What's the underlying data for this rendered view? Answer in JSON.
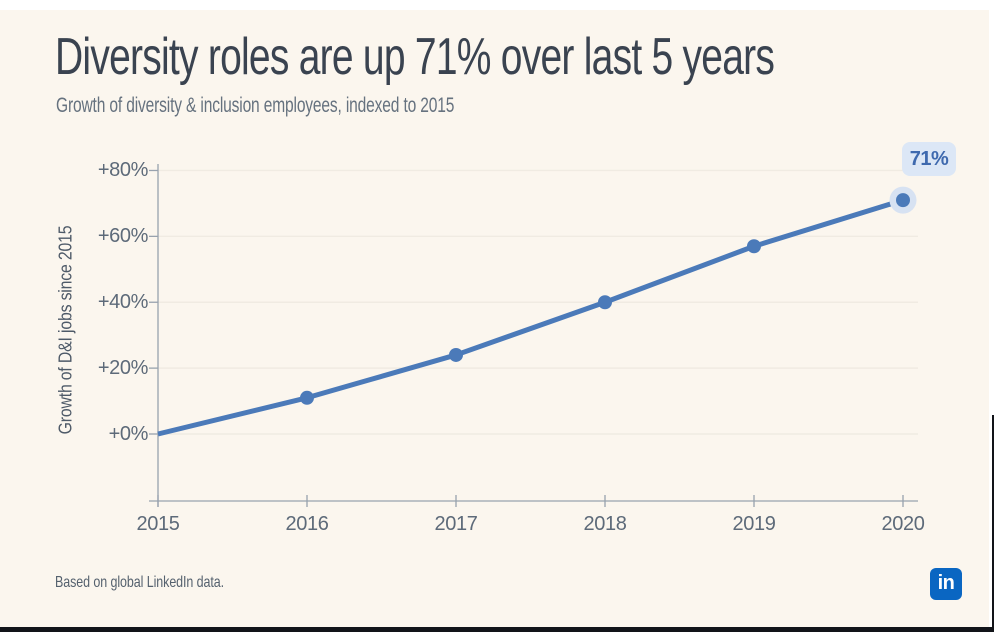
{
  "page": {
    "title": "Diversity roles are up 71% over last 5 years",
    "subtitle": "Growth of diversity & inclusion employees, indexed to 2015",
    "footer": "Based on global LinkedIn data.",
    "logo_text": "in"
  },
  "annotation": {
    "label": "71%"
  },
  "colors": {
    "panel_background": "#FBF6EE",
    "line": "#4B7AB9",
    "marker": "#4B7AB9",
    "marker_halo": "#D7E2F2",
    "badge_background": "#DCE7F6",
    "badge_text": "#3E69AE",
    "grid": "#F0EBE2",
    "axis": "#98A2AE",
    "title_text": "#3A4350",
    "subtitle_text": "#66727F",
    "tick_text": "#5D6A79",
    "linkedin_blue": "#0A66C2"
  },
  "chart_data": {
    "type": "line",
    "title": "Diversity roles are up 71% over last 5 years",
    "subtitle": "Growth of diversity & inclusion employees, indexed to 2015",
    "xlabel": "",
    "ylabel": "Growth of D&I jobs since 2015",
    "x": [
      2015,
      2016,
      2017,
      2018,
      2019,
      2020
    ],
    "values": [
      0,
      11,
      24,
      40,
      57,
      71
    ],
    "markers": [
      false,
      true,
      true,
      true,
      true,
      true
    ],
    "x_axis": {
      "tick_labels": [
        "2015",
        "2016",
        "2017",
        "2018",
        "2019",
        "2020"
      ]
    },
    "y_axis": {
      "tick_labels": [
        "+0%",
        "+20%",
        "+40%",
        "+60%",
        "+80%"
      ],
      "tick_values": [
        0,
        20,
        40,
        60,
        80
      ]
    },
    "ylim": [
      -20,
      80
    ],
    "grid": "horizontal",
    "legend": "none",
    "annotation": {
      "x": 2020,
      "value": 71,
      "label": "71%",
      "highlighted_point": true
    }
  }
}
